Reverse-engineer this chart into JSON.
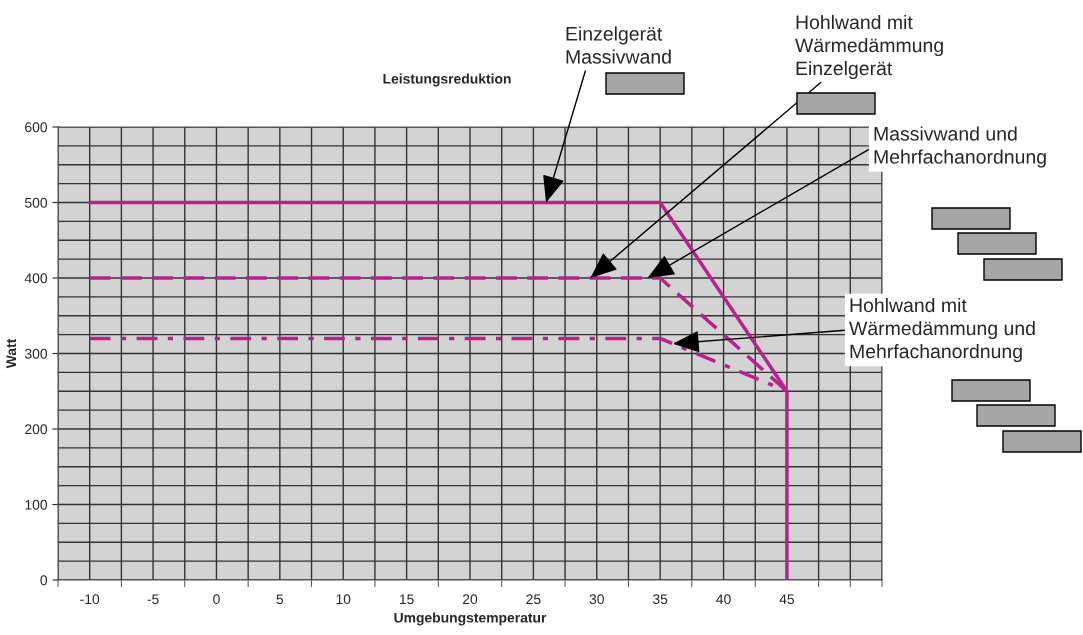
{
  "chart_data": {
    "type": "line",
    "title": "Leistungsreduktion",
    "xlabel": "Umgebungstemperatur",
    "ylabel": "Watt",
    "series": [
      {
        "color": "#b8228c",
        "line_style": "solid",
        "x": [
          -10,
          35,
          45,
          45
        ],
        "values": [
          500,
          500,
          250,
          0
        ]
      },
      {
        "color": "#b8228c",
        "line_style": "dashed",
        "x": [
          -10,
          35,
          45
        ],
        "values": [
          400,
          400,
          250
        ]
      },
      {
        "color": "#b8228c",
        "line_style": "dashdot",
        "x": [
          -10,
          35,
          45
        ],
        "values": [
          320,
          320,
          250
        ]
      }
    ],
    "xlim": [
      -12.5,
      52.5
    ],
    "ylim": [
      0,
      600
    ],
    "xticks": [
      -10,
      -5,
      0,
      5,
      10,
      15,
      20,
      25,
      30,
      35,
      40,
      45
    ],
    "yticks": [
      0,
      100,
      200,
      300,
      400,
      500,
      600
    ],
    "grid": true,
    "legend": false,
    "marker": "none",
    "annotations": [
      {
        "text": "Einzelgerät\nMassivwand",
        "x": 26,
        "y": 500
      },
      {
        "text": "Hohlwand mit\nWärmedämmung\nEinzelgerät",
        "x": 29.5,
        "y": 400
      },
      {
        "text": "Massivwand und\nMehrfachanordnung",
        "x": 34,
        "y": 400
      },
      {
        "text": "Hohlwand mit\nWärmedämmung und\nMehrfachanordnung",
        "x": 36,
        "y": 313
      }
    ]
  }
}
